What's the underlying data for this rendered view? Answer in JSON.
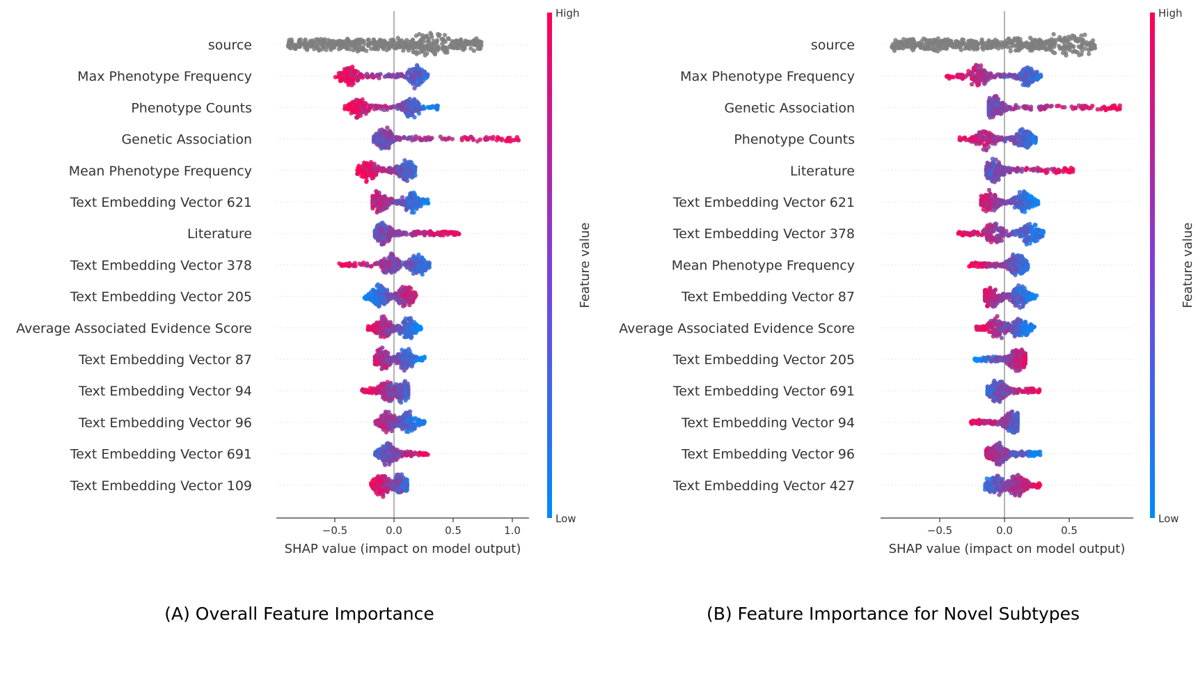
{
  "colors": {
    "low": "#008afb",
    "high": "#ff0052",
    "neutral": "#7f7f7f",
    "zero_line": "#999999",
    "axis": "#333333"
  },
  "chart_data": [
    {
      "type": "scatter",
      "subtype": "shap_beeswarm",
      "caption": "(A) Overall Feature Importance",
      "xlabel": "SHAP value (impact on model output)",
      "xlim": [
        -1.0,
        1.15
      ],
      "xticks": [
        -0.5,
        0.0,
        0.5,
        1.0
      ],
      "xtick_labels": [
        "−0.5",
        "0.0",
        "0.5",
        "1.0"
      ],
      "colorbar": {
        "label": "Feature value",
        "high": "High",
        "low": "Low"
      },
      "features": [
        {
          "name": "source",
          "min": -0.9,
          "max": 0.74,
          "gray": true
        },
        {
          "name": "Max Phenotype Frequency",
          "min": -0.5,
          "max": 0.29,
          "neg": "high",
          "dense": [
            -0.38,
            0.18
          ]
        },
        {
          "name": "Phenotype Counts",
          "min": -0.42,
          "max": 0.37,
          "neg": "high",
          "dense": [
            -0.3,
            0.14
          ]
        },
        {
          "name": "Genetic Association",
          "min": -0.17,
          "max": 1.07,
          "neg": "low",
          "dense": [
            -0.08
          ]
        },
        {
          "name": "Mean Phenotype Frequency",
          "min": -0.31,
          "max": 0.18,
          "neg": "high",
          "dense": [
            -0.22,
            0.1
          ]
        },
        {
          "name": "Text Embedding Vector 621",
          "min": -0.18,
          "max": 0.29,
          "neg": "high",
          "dense": [
            -0.12,
            0.15
          ]
        },
        {
          "name": "Literature",
          "min": -0.16,
          "max": 0.56,
          "neg": "low",
          "dense": [
            -0.09
          ]
        },
        {
          "name": "Text Embedding Vector 378",
          "min": -0.47,
          "max": 0.31,
          "neg": "high",
          "dense": [
            -0.03,
            0.2
          ]
        },
        {
          "name": "Text Embedding Vector 205",
          "min": -0.25,
          "max": 0.19,
          "neg": "low",
          "dense": [
            -0.12,
            0.1
          ]
        },
        {
          "name": "Average Associated Evidence Score",
          "min": -0.22,
          "max": 0.23,
          "neg": "high",
          "dense": [
            -0.08,
            0.12
          ]
        },
        {
          "name": "Text Embedding Vector 87",
          "min": -0.16,
          "max": 0.26,
          "neg": "high",
          "dense": [
            -0.1,
            0.1
          ]
        },
        {
          "name": "Text Embedding Vector 94",
          "min": -0.27,
          "max": 0.12,
          "neg": "high",
          "dense": [
            -0.05,
            0.07
          ]
        },
        {
          "name": "Text Embedding Vector 96",
          "min": -0.16,
          "max": 0.26,
          "neg": "high",
          "dense": [
            -0.05,
            0.12
          ]
        },
        {
          "name": "Text Embedding Vector 691",
          "min": -0.16,
          "max": 0.29,
          "neg": "low",
          "dense": [
            -0.05
          ]
        },
        {
          "name": "Text Embedding Vector 109",
          "min": -0.2,
          "max": 0.11,
          "neg": "high",
          "dense": [
            -0.1,
            0.06
          ]
        }
      ]
    },
    {
      "type": "scatter",
      "subtype": "shap_beeswarm",
      "caption": "(B) Feature Importance for Novel Subtypes",
      "xlabel": "SHAP value (impact on model output)",
      "xlim": [
        -0.97,
        1.0
      ],
      "xticks": [
        -0.5,
        0.0,
        0.5
      ],
      "xtick_labels": [
        "−0.5",
        "0.0",
        "0.5"
      ],
      "colorbar": {
        "label": "Feature value",
        "high": "High",
        "low": "Low"
      },
      "features": [
        {
          "name": "source",
          "min": -0.87,
          "max": 0.7,
          "gray": true
        },
        {
          "name": "Max Phenotype Frequency",
          "min": -0.45,
          "max": 0.28,
          "neg": "high",
          "dense": [
            -0.2,
            0.18
          ]
        },
        {
          "name": "Genetic Association",
          "min": -0.12,
          "max": 0.9,
          "neg": "low",
          "dense": [
            -0.08
          ]
        },
        {
          "name": "Phenotype Counts",
          "min": -0.36,
          "max": 0.25,
          "neg": "high",
          "dense": [
            -0.15,
            0.15
          ]
        },
        {
          "name": "Literature",
          "min": -0.14,
          "max": 0.53,
          "neg": "low",
          "dense": [
            -0.08
          ]
        },
        {
          "name": "Text Embedding Vector 621",
          "min": -0.18,
          "max": 0.26,
          "neg": "high",
          "dense": [
            -0.12,
            0.15
          ]
        },
        {
          "name": "Text Embedding Vector 378",
          "min": -0.36,
          "max": 0.3,
          "neg": "high",
          "dense": [
            -0.08,
            0.2
          ]
        },
        {
          "name": "Mean Phenotype Frequency",
          "min": -0.28,
          "max": 0.18,
          "neg": "high",
          "dense": [
            0.1
          ]
        },
        {
          "name": "Text Embedding Vector 87",
          "min": -0.15,
          "max": 0.25,
          "neg": "high",
          "dense": [
            -0.1,
            0.12
          ]
        },
        {
          "name": "Average Associated Evidence Score",
          "min": -0.23,
          "max": 0.23,
          "neg": "high",
          "dense": [
            -0.05,
            0.12
          ]
        },
        {
          "name": "Text Embedding Vector 205",
          "min": -0.23,
          "max": 0.16,
          "neg": "low",
          "dense": [
            0.1
          ]
        },
        {
          "name": "Text Embedding Vector 691",
          "min": -0.13,
          "max": 0.27,
          "neg": "low",
          "dense": [
            -0.05
          ]
        },
        {
          "name": "Text Embedding Vector 94",
          "min": -0.26,
          "max": 0.1,
          "neg": "high",
          "dense": [
            0.07
          ]
        },
        {
          "name": "Text Embedding Vector 96",
          "min": -0.14,
          "max": 0.28,
          "neg": "high",
          "dense": [
            -0.06
          ]
        },
        {
          "name": "Text Embedding Vector 427",
          "min": -0.15,
          "max": 0.28,
          "neg": "low",
          "dense": [
            -0.07,
            0.1
          ]
        }
      ]
    }
  ]
}
